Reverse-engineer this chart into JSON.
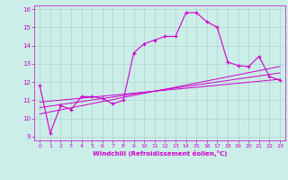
{
  "title": "",
  "xlabel": "Windchill (Refroidissement éolien,°C)",
  "xlim": [
    -0.5,
    23.5
  ],
  "ylim": [
    8.8,
    16.2
  ],
  "xticks": [
    0,
    1,
    2,
    3,
    4,
    5,
    6,
    7,
    8,
    9,
    10,
    11,
    12,
    13,
    14,
    15,
    16,
    17,
    18,
    19,
    20,
    21,
    22,
    23
  ],
  "yticks": [
    9,
    10,
    11,
    12,
    13,
    14,
    15,
    16
  ],
  "bg_color": "#cceee8",
  "line_color": "#cc00cc",
  "grid_color": "#aacccc",
  "series1_x": [
    0,
    1,
    2,
    3,
    4,
    5,
    6,
    7,
    8,
    9,
    10,
    11,
    12,
    13,
    14,
    15,
    16,
    17,
    18,
    19,
    20,
    21,
    22,
    23
  ],
  "series1_y": [
    11.8,
    9.2,
    10.7,
    10.5,
    11.2,
    11.2,
    11.1,
    10.8,
    11.0,
    13.6,
    14.1,
    14.3,
    14.5,
    14.5,
    15.8,
    15.8,
    15.3,
    15.0,
    13.1,
    12.9,
    12.85,
    13.4,
    12.3,
    12.1
  ],
  "series2_x": [
    0,
    23
  ],
  "series2_y": [
    10.9,
    12.15
  ],
  "series3_x": [
    0,
    23
  ],
  "series3_y": [
    10.6,
    12.5
  ],
  "series4_x": [
    0,
    23
  ],
  "series4_y": [
    10.25,
    12.85
  ]
}
